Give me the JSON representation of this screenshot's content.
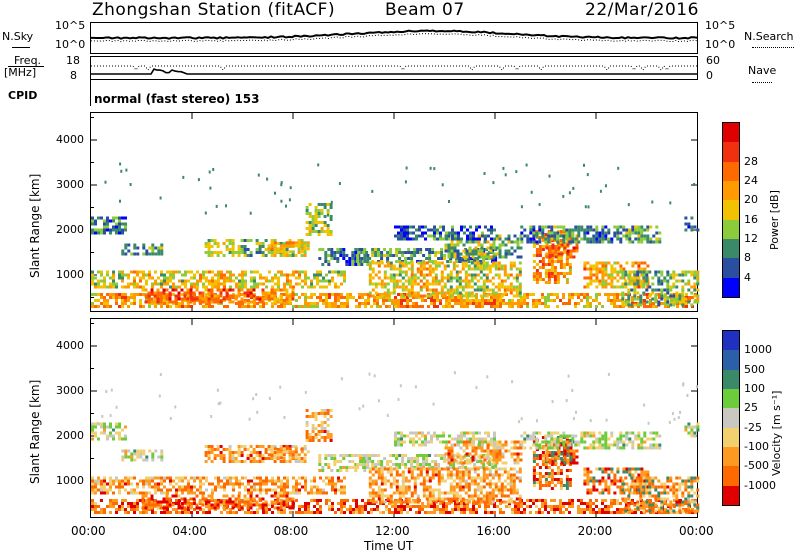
{
  "header": {
    "station": "Zhongshan Station (fitACF)",
    "beam": "Beam 07",
    "date": "22/Mar/2016"
  },
  "top_panel": {
    "left_label": "N.Sky",
    "left_ticks": [
      "10^5",
      "10^0"
    ],
    "right_ticks": [
      "10^5",
      "10^0"
    ],
    "right_label": "N.Search"
  },
  "freq_panel": {
    "left_label_top": "Freq.",
    "left_label_bottom": "[MHz]",
    "left_ticks": [
      "18",
      "8"
    ],
    "right_ticks": [
      "60",
      "0"
    ],
    "right_label": "Nave"
  },
  "cpid": {
    "label": "CPID",
    "text": "normal (fast stereo) 153"
  },
  "chart_data": [
    {
      "type": "heatmap",
      "name": "power",
      "ylabel": "Slant Range [km]",
      "yticks": [
        "1000",
        "2000",
        "3000",
        "4000"
      ],
      "ylim": [
        200,
        4600
      ],
      "xlim": [
        0,
        24
      ],
      "colorbar_label": "Power [dB]",
      "colorbar_ticks": [
        "4",
        "8",
        "12",
        "16",
        "20",
        "24",
        "28"
      ],
      "colors": [
        "#0000ff",
        "#2b4fa0",
        "#3a8a6a",
        "#8ccc3a",
        "#f2c200",
        "#ff9a00",
        "#ff6a00",
        "#f03010",
        "#e00000"
      ]
    },
    {
      "type": "heatmap",
      "name": "velocity",
      "ylabel": "Slant Range [km]",
      "yticks": [
        "1000",
        "2000",
        "3000",
        "4000"
      ],
      "ylim": [
        200,
        4600
      ],
      "xlim": [
        0,
        24
      ],
      "colorbar_label": "Velocity [m s⁻¹]",
      "colorbar_ticks": [
        "1000",
        "500",
        "100",
        "25",
        "-25",
        "-100",
        "-500",
        "-1000"
      ],
      "colors": [
        "#2030c0",
        "#2b5fa8",
        "#3a8a6a",
        "#6ccc3a",
        "#c8c8c0",
        "#f2d070",
        "#ff9a20",
        "#ff6a00",
        "#e00000"
      ]
    }
  ],
  "x_axis": {
    "ticks": [
      "00:00",
      "04:00",
      "08:00",
      "12:00",
      "16:00",
      "20:00",
      "00:00"
    ],
    "label": "Time UT"
  }
}
